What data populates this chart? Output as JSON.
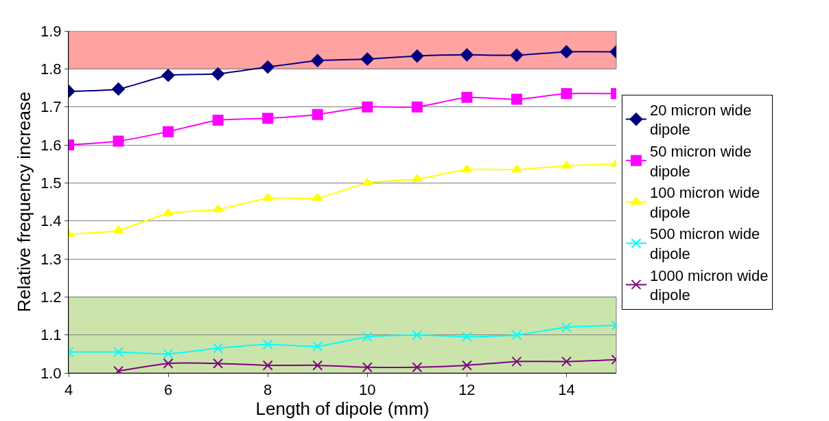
{
  "chart_data": {
    "type": "line",
    "xlabel": "Length of dipole (mm)",
    "ylabel": "Relative frequency increase",
    "x": [
      4,
      5,
      6,
      7,
      8,
      9,
      10,
      11,
      12,
      13,
      14,
      15
    ],
    "xlim": [
      4,
      15
    ],
    "xticks": [
      4,
      6,
      8,
      10,
      12,
      14
    ],
    "ylim": [
      1.0,
      1.9
    ],
    "yticks": [
      {
        "value": 1.0,
        "label": "1.0"
      },
      1.1,
      1.2,
      1.3,
      1.4,
      1.5,
      1.6,
      1.7,
      1.8,
      1.9
    ],
    "grid": "y",
    "legend": "right",
    "series": [
      {
        "name": "20 micron wide dipole",
        "color": "#000080",
        "marker": "diamond",
        "values": [
          1.741,
          1.747,
          1.783,
          1.787,
          1.805,
          1.822,
          1.826,
          1.834,
          1.837,
          1.836,
          1.845,
          1.845
        ]
      },
      {
        "name": "50 micron wide dipole",
        "color": "#ff00ff",
        "marker": "square",
        "values": [
          1.6,
          1.61,
          1.635,
          1.665,
          1.67,
          1.68,
          1.7,
          1.7,
          1.725,
          1.72,
          1.735,
          1.735
        ]
      },
      {
        "name": "100 micron wide dipole",
        "color": "#ffff00",
        "marker": "triangle",
        "values": [
          1.365,
          1.375,
          1.42,
          1.43,
          1.46,
          1.46,
          1.5,
          1.51,
          1.535,
          1.535,
          1.545,
          1.55
        ]
      },
      {
        "name": "500 micron wide dipole",
        "color": "#00ffff",
        "marker": "cross",
        "values": [
          1.055,
          1.055,
          1.05,
          1.065,
          1.075,
          1.07,
          1.095,
          1.1,
          1.095,
          1.1,
          1.12,
          1.125
        ]
      },
      {
        "name": "1000 micron wide dipole",
        "color": "#800080",
        "marker": "cross",
        "values": [
          null,
          1.005,
          1.025,
          1.025,
          1.02,
          1.02,
          1.015,
          1.015,
          1.02,
          1.03,
          1.03,
          1.035
        ]
      }
    ],
    "bands": [
      {
        "axis": "y",
        "from": 1.8,
        "to": 1.9,
        "color": "#ff9999"
      },
      {
        "axis": "y",
        "from": 1.0,
        "to": 1.2,
        "color": "#c6e2a4"
      }
    ]
  }
}
